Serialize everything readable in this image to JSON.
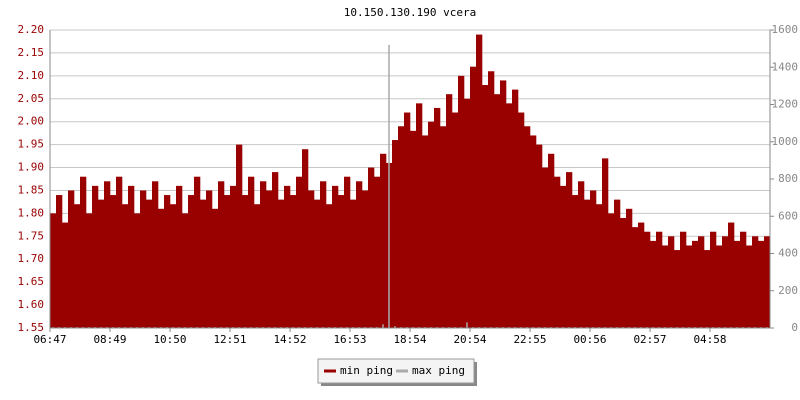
{
  "chart_data": {
    "type": "bar",
    "title": "10.150.130.190 vcera",
    "categories": [
      "06:47",
      null,
      null,
      null,
      null,
      null,
      null,
      null,
      null,
      null,
      "08:49",
      null,
      null,
      null,
      null,
      null,
      null,
      null,
      null,
      null,
      "10:50",
      null,
      null,
      null,
      null,
      null,
      null,
      null,
      null,
      null,
      "12:51",
      null,
      null,
      null,
      null,
      null,
      null,
      null,
      null,
      null,
      "14:52",
      null,
      null,
      null,
      null,
      null,
      null,
      null,
      null,
      null,
      "16:53",
      null,
      null,
      null,
      null,
      null,
      null,
      null,
      null,
      null,
      "18:54",
      null,
      null,
      null,
      null,
      null,
      null,
      null,
      null,
      null,
      "20:54",
      null,
      null,
      null,
      null,
      null,
      null,
      null,
      null,
      null,
      "22:55",
      null,
      null,
      null,
      null,
      null,
      null,
      null,
      null,
      null,
      "00:56",
      null,
      null,
      null,
      null,
      null,
      null,
      null,
      null,
      null,
      "02:57",
      null,
      null,
      null,
      null,
      null,
      null,
      null,
      null,
      null,
      "04:58",
      null,
      null,
      null,
      null,
      null,
      null,
      null,
      null,
      null
    ],
    "series": [
      {
        "name": "min ping",
        "color": "#990000",
        "values": [
          1.8,
          1.84,
          1.78,
          1.85,
          1.82,
          1.88,
          1.8,
          1.86,
          1.83,
          1.87,
          1.84,
          1.88,
          1.82,
          1.86,
          1.8,
          1.85,
          1.83,
          1.87,
          1.81,
          1.84,
          1.82,
          1.86,
          1.8,
          1.84,
          1.88,
          1.83,
          1.85,
          1.81,
          1.87,
          1.84,
          1.86,
          1.95,
          1.84,
          1.88,
          1.82,
          1.87,
          1.85,
          1.89,
          1.83,
          1.86,
          1.84,
          1.88,
          1.94,
          1.85,
          1.83,
          1.87,
          1.82,
          1.86,
          1.84,
          1.88,
          1.83,
          1.87,
          1.85,
          1.9,
          1.88,
          1.93,
          1.91,
          1.96,
          1.99,
          2.02,
          1.98,
          2.04,
          1.97,
          2.0,
          2.03,
          1.99,
          2.06,
          2.02,
          2.1,
          2.05,
          2.12,
          2.19,
          2.08,
          2.11,
          2.06,
          2.09,
          2.04,
          2.07,
          2.02,
          1.99,
          1.97,
          1.95,
          1.9,
          1.93,
          1.88,
          1.86,
          1.89,
          1.84,
          1.87,
          1.83,
          1.85,
          1.82,
          1.92,
          1.8,
          1.83,
          1.79,
          1.81,
          1.77,
          1.78,
          1.76,
          1.74,
          1.76,
          1.73,
          1.75,
          1.72,
          1.76,
          1.73,
          1.74,
          1.75,
          1.72,
          1.76,
          1.73,
          1.75,
          1.78,
          1.74,
          1.76,
          1.73,
          1.75,
          1.74,
          1.75
        ]
      },
      {
        "name": "max ping",
        "color": "#aaaaaa",
        "axis": "y2",
        "values": [
          5,
          5,
          5,
          5,
          5,
          5,
          5,
          5,
          5,
          5,
          5,
          5,
          5,
          5,
          5,
          5,
          5,
          5,
          5,
          5,
          5,
          5,
          5,
          5,
          5,
          5,
          5,
          5,
          5,
          5,
          5,
          5,
          5,
          5,
          5,
          5,
          5,
          5,
          5,
          5,
          5,
          5,
          5,
          5,
          5,
          5,
          5,
          5,
          5,
          5,
          5,
          5,
          5,
          5,
          5,
          20,
          1520,
          10,
          5,
          5,
          5,
          5,
          5,
          5,
          5,
          5,
          5,
          5,
          5,
          30,
          5,
          5,
          5,
          5,
          5,
          5,
          5,
          5,
          5,
          5,
          5,
          5,
          5,
          5,
          5,
          5,
          5,
          5,
          5,
          5,
          5,
          5,
          5,
          5,
          5,
          5,
          5,
          5,
          5,
          5,
          5,
          5,
          5,
          5,
          5,
          5,
          5,
          5,
          5,
          5,
          5,
          5,
          5,
          5,
          5,
          5,
          5,
          5,
          5,
          5
        ]
      }
    ],
    "ylim": [
      1.55,
      2.2
    ],
    "yticks": [
      1.55,
      {
        "value": 1.6,
        "label": "1.60"
      },
      1.65,
      {
        "value": 1.7,
        "label": "1.70"
      },
      1.75,
      {
        "value": 1.8,
        "label": "1.80"
      },
      1.85,
      {
        "value": 1.9,
        "label": "1.90"
      },
      1.95,
      {
        "value": 2.0,
        "label": "2.00"
      },
      2.05,
      {
        "value": 2.1,
        "label": "2.10"
      },
      2.15,
      {
        "value": 2.2,
        "label": "2.20"
      }
    ],
    "y2lim": [
      0,
      1600
    ],
    "y2ticks": [
      0,
      200,
      400,
      600,
      800,
      1000,
      1200,
      1400,
      1600
    ],
    "grid": true
  }
}
